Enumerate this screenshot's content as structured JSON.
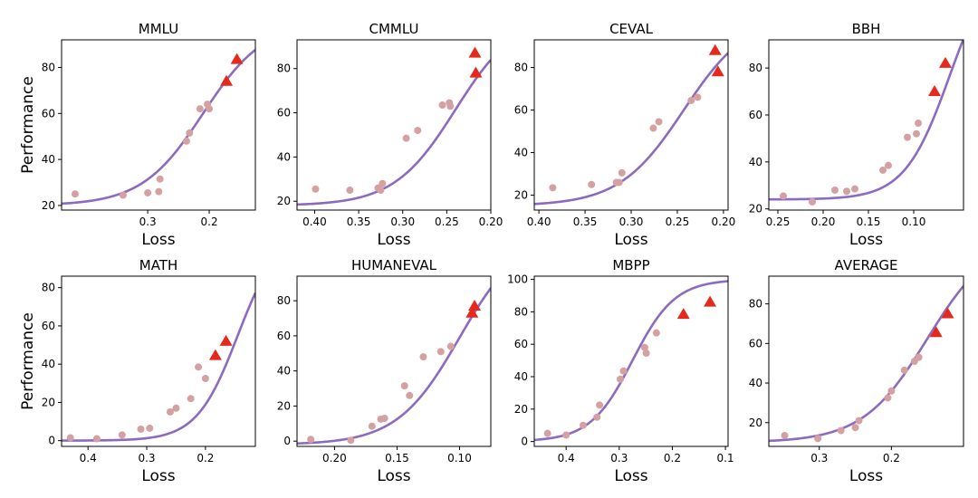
{
  "colors": {
    "fit": "#8c6bbf",
    "points": "#d4a1a3",
    "highlight": "#e5291c"
  },
  "chart_data": [
    {
      "type": "scatter",
      "title": "MMLU",
      "xlabel": "Loss",
      "ylabel": "Performance",
      "xlim": [
        0.44,
        0.125
      ],
      "ylim": [
        18,
        92
      ],
      "x_inverted": true,
      "xticks": [
        0.3,
        0.2
      ],
      "xtick_labels": [
        "0.3",
        "0.2"
      ],
      "yticks": [
        20,
        40,
        60,
        80
      ],
      "ytick_labels": [
        "20",
        "40",
        "60",
        "80"
      ],
      "points": [
        [
          0.418,
          25
        ],
        [
          0.34,
          24.5
        ],
        [
          0.3,
          25.5
        ],
        [
          0.282,
          26
        ],
        [
          0.28,
          31.5
        ],
        [
          0.237,
          48
        ],
        [
          0.232,
          51.5
        ],
        [
          0.215,
          62
        ],
        [
          0.203,
          64
        ],
        [
          0.2,
          62
        ]
      ],
      "highlights": [
        [
          0.172,
          74
        ],
        [
          0.155,
          83.5
        ]
      ],
      "fit": {
        "lower": 20,
        "upper": 100,
        "midpoint": 0.21,
        "scale": 0.05
      }
    },
    {
      "type": "scatter",
      "title": "CMMLU",
      "xlabel": "Loss",
      "ylabel": "",
      "xlim": [
        0.42,
        0.2
      ],
      "ylim": [
        16,
        93
      ],
      "x_inverted": true,
      "xticks": [
        0.4,
        0.35,
        0.3,
        0.25,
        0.2
      ],
      "xtick_labels": [
        "0.40",
        "0.35",
        "0.30",
        "0.25",
        "0.20"
      ],
      "yticks": [
        20,
        40,
        60,
        80
      ],
      "ytick_labels": [
        "20",
        "40",
        "60",
        "80"
      ],
      "points": [
        [
          0.399,
          25.5
        ],
        [
          0.36,
          25
        ],
        [
          0.328,
          26
        ],
        [
          0.325,
          25
        ],
        [
          0.323,
          28
        ],
        [
          0.296,
          48.5
        ],
        [
          0.283,
          52
        ],
        [
          0.255,
          63.5
        ],
        [
          0.247,
          64.5
        ],
        [
          0.246,
          63
        ]
      ],
      "highlights": [
        [
          0.218,
          87
        ],
        [
          0.217,
          78
        ]
      ],
      "fit": {
        "lower": 18,
        "upper": 105,
        "midpoint": 0.24,
        "scale": 0.035
      }
    },
    {
      "type": "scatter",
      "title": "CEVAL",
      "xlabel": "Loss",
      "ylabel": "",
      "xlim": [
        0.405,
        0.195
      ],
      "ylim": [
        13,
        93
      ],
      "x_inverted": true,
      "xticks": [
        0.4,
        0.35,
        0.3,
        0.25,
        0.2
      ],
      "xtick_labels": [
        "0.40",
        "0.35",
        "0.30",
        "0.25",
        "0.20"
      ],
      "yticks": [
        20,
        40,
        60,
        80
      ],
      "ytick_labels": [
        "20",
        "40",
        "60",
        "80"
      ],
      "points": [
        [
          0.385,
          23.5
        ],
        [
          0.343,
          25
        ],
        [
          0.316,
          26
        ],
        [
          0.313,
          26
        ],
        [
          0.31,
          30.5
        ],
        [
          0.276,
          51.5
        ],
        [
          0.27,
          54.5
        ],
        [
          0.235,
          64.5
        ],
        [
          0.228,
          66
        ]
      ],
      "highlights": [
        [
          0.209,
          88
        ],
        [
          0.206,
          78
        ]
      ],
      "fit": {
        "lower": 15,
        "upper": 105,
        "midpoint": 0.243,
        "scale": 0.035
      }
    },
    {
      "type": "scatter",
      "title": "BBH",
      "xlabel": "Loss",
      "ylabel": "",
      "xlim": [
        0.26,
        0.045
      ],
      "ylim": [
        19.5,
        92
      ],
      "x_inverted": true,
      "xticks": [
        0.25,
        0.2,
        0.15,
        0.1
      ],
      "xtick_labels": [
        "0.25",
        "0.20",
        "0.15",
        "0.10"
      ],
      "yticks": [
        20,
        40,
        60,
        80
      ],
      "ytick_labels": [
        "20",
        "40",
        "60",
        "80"
      ],
      "points": [
        [
          0.244,
          25.5
        ],
        [
          0.212,
          23
        ],
        [
          0.187,
          28
        ],
        [
          0.174,
          27.5
        ],
        [
          0.165,
          28.5
        ],
        [
          0.134,
          36.5
        ],
        [
          0.128,
          38.5
        ],
        [
          0.107,
          50.5
        ],
        [
          0.097,
          52
        ],
        [
          0.095,
          56.5
        ]
      ],
      "highlights": [
        [
          0.077,
          70
        ],
        [
          0.065,
          82
        ]
      ],
      "fit": {
        "lower": 24,
        "upper": 130,
        "midpoint": 0.06,
        "scale": 0.025
      }
    },
    {
      "type": "scatter",
      "title": "MATH",
      "xlabel": "Loss",
      "ylabel": "Performance",
      "xlim": [
        0.445,
        0.115
      ],
      "ylim": [
        -3,
        86
      ],
      "x_inverted": true,
      "xticks": [
        0.4,
        0.3,
        0.2
      ],
      "xtick_labels": [
        "0.4",
        "0.3",
        "0.2"
      ],
      "yticks": [
        0,
        20,
        40,
        60,
        80
      ],
      "ytick_labels": [
        "0",
        "20",
        "40",
        "60",
        "80"
      ],
      "points": [
        [
          0.43,
          1.5
        ],
        [
          0.385,
          1
        ],
        [
          0.342,
          3
        ],
        [
          0.31,
          6
        ],
        [
          0.295,
          6.5
        ],
        [
          0.26,
          15
        ],
        [
          0.25,
          17
        ],
        [
          0.225,
          22
        ],
        [
          0.212,
          38.5
        ],
        [
          0.2,
          32.5
        ]
      ],
      "highlights": [
        [
          0.183,
          44.5
        ],
        [
          0.165,
          52
        ]
      ],
      "fit": {
        "lower": 0,
        "upper": 110,
        "midpoint": 0.145,
        "scale": 0.035
      }
    },
    {
      "type": "scatter",
      "title": "HUMANEVAL",
      "xlabel": "Loss",
      "ylabel": "",
      "xlim": [
        0.23,
        0.075
      ],
      "ylim": [
        -3,
        94
      ],
      "x_inverted": true,
      "xticks": [
        0.2,
        0.15,
        0.1
      ],
      "xtick_labels": [
        "0.20",
        "0.15",
        "0.10"
      ],
      "yticks": [
        0,
        20,
        40,
        60,
        80
      ],
      "ytick_labels": [
        "0",
        "20",
        "40",
        "60",
        "80"
      ],
      "points": [
        [
          0.219,
          1
        ],
        [
          0.187,
          0.5
        ],
        [
          0.17,
          8.5
        ],
        [
          0.163,
          12.5
        ],
        [
          0.16,
          13
        ],
        [
          0.144,
          31.5
        ],
        [
          0.14,
          26
        ],
        [
          0.129,
          48
        ],
        [
          0.115,
          51
        ],
        [
          0.107,
          54
        ]
      ],
      "highlights": [
        [
          0.09,
          73
        ],
        [
          0.088,
          77
        ]
      ],
      "fit": {
        "lower": -2,
        "upper": 120,
        "midpoint": 0.1,
        "scale": 0.025
      }
    },
    {
      "type": "scatter",
      "title": "MBPP",
      "xlabel": "Loss",
      "ylabel": "",
      "xlim": [
        0.46,
        0.095
      ],
      "ylim": [
        -3,
        102
      ],
      "x_inverted": true,
      "xticks": [
        0.4,
        0.3,
        0.2,
        0.1
      ],
      "xtick_labels": [
        "0.4",
        "0.3",
        "0.2",
        "0.1"
      ],
      "yticks": [
        0,
        20,
        40,
        60,
        80,
        100
      ],
      "ytick_labels": [
        "0",
        "20",
        "40",
        "60",
        "80",
        "100"
      ],
      "points": [
        [
          0.435,
          5
        ],
        [
          0.4,
          4
        ],
        [
          0.368,
          10
        ],
        [
          0.342,
          15
        ],
        [
          0.337,
          22.5
        ],
        [
          0.298,
          38.5
        ],
        [
          0.292,
          43.5
        ],
        [
          0.252,
          58
        ],
        [
          0.249,
          54.5
        ],
        [
          0.23,
          67
        ]
      ],
      "highlights": [
        [
          0.179,
          78.5
        ],
        [
          0.129,
          86
        ]
      ],
      "fit": {
        "lower": 0,
        "upper": 100,
        "midpoint": 0.275,
        "scale": 0.04
      }
    },
    {
      "type": "scatter",
      "title": "AVERAGE",
      "xlabel": "Loss",
      "ylabel": "",
      "xlim": [
        0.37,
        0.1
      ],
      "ylim": [
        8,
        94
      ],
      "x_inverted": true,
      "xticks": [
        0.3,
        0.2
      ],
      "xtick_labels": [
        "0.3",
        "0.2"
      ],
      "yticks": [
        20,
        40,
        60,
        80
      ],
      "ytick_labels": [
        "20",
        "40",
        "60",
        "80"
      ],
      "points": [
        [
          0.348,
          13.5
        ],
        [
          0.302,
          12
        ],
        [
          0.27,
          16
        ],
        [
          0.25,
          17.5
        ],
        [
          0.245,
          21
        ],
        [
          0.205,
          32.5
        ],
        [
          0.2,
          36
        ],
        [
          0.182,
          46.5
        ],
        [
          0.168,
          51
        ],
        [
          0.162,
          53
        ]
      ],
      "highlights": [
        [
          0.138,
          65.5
        ],
        [
          0.122,
          75
        ]
      ],
      "fit": {
        "lower": 10,
        "upper": 115,
        "midpoint": 0.15,
        "scale": 0.045
      }
    }
  ]
}
